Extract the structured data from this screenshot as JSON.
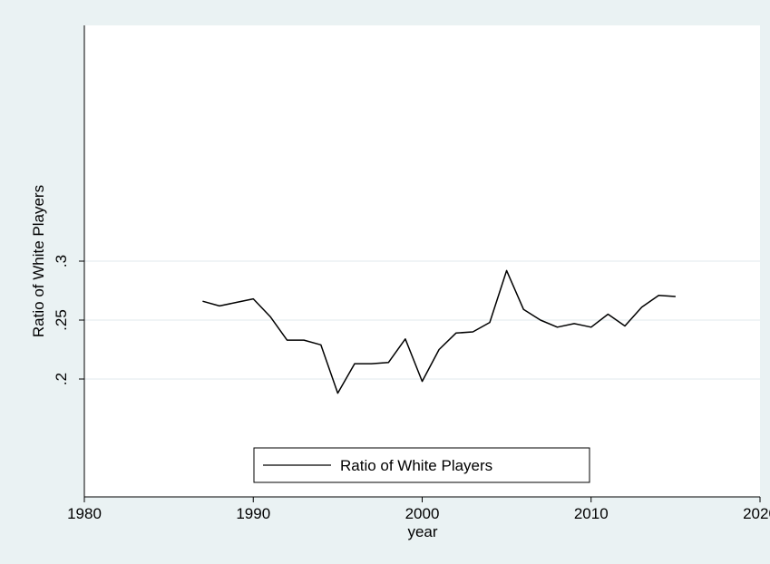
{
  "chart_data": {
    "type": "line",
    "title": "",
    "xlabel": "year",
    "ylabel": "Ratio of White Players",
    "xlim": [
      1980,
      2020
    ],
    "ylim": [
      0.1,
      0.5
    ],
    "x_ticks": [
      1980,
      1990,
      2000,
      2010,
      2020
    ],
    "x_tick_labels": [
      "1980",
      "1990",
      "2000",
      "2010",
      "2020"
    ],
    "y_ticks": [
      0.2,
      0.25,
      0.3
    ],
    "y_tick_labels": [
      ".2",
      ".25",
      ".3"
    ],
    "grid": true,
    "legend_position": "bottom",
    "series": [
      {
        "name": "Ratio of White Players",
        "color": "#000000",
        "x": [
          1987,
          1988,
          1989,
          1990,
          1991,
          1992,
          1993,
          1994,
          1995,
          1996,
          1997,
          1998,
          1999,
          2000,
          2001,
          2002,
          2003,
          2004,
          2005,
          2006,
          2007,
          2008,
          2009,
          2010,
          2011,
          2012,
          2013,
          2014,
          2015
        ],
        "y": [
          0.266,
          0.262,
          0.265,
          0.268,
          0.253,
          0.233,
          0.233,
          0.229,
          0.188,
          0.213,
          0.213,
          0.214,
          0.234,
          0.198,
          0.225,
          0.239,
          0.24,
          0.248,
          0.292,
          0.259,
          0.25,
          0.244,
          0.247,
          0.244,
          0.255,
          0.245,
          0.261,
          0.271,
          0.27
        ]
      }
    ]
  }
}
